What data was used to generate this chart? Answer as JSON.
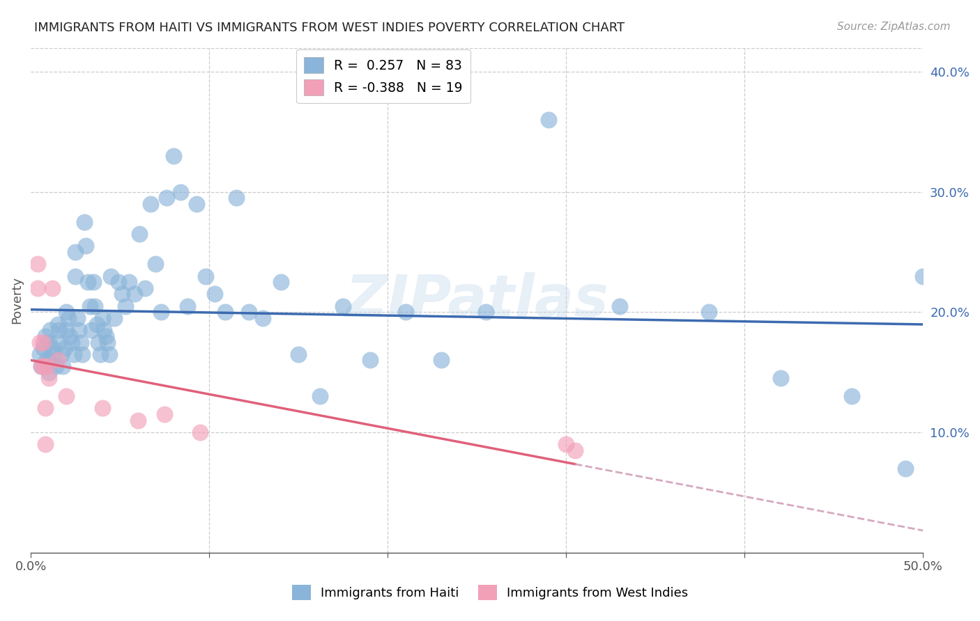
{
  "title": "IMMIGRANTS FROM HAITI VS IMMIGRANTS FROM WEST INDIES POVERTY CORRELATION CHART",
  "source": "Source: ZipAtlas.com",
  "ylabel": "Poverty",
  "xlim": [
    0.0,
    0.5
  ],
  "ylim": [
    0.0,
    0.42
  ],
  "x_ticks": [
    0.0,
    0.1,
    0.2,
    0.3,
    0.4,
    0.5
  ],
  "x_tick_labels": [
    "0.0%",
    "",
    "",
    "",
    "",
    "50.0%"
  ],
  "y_tick_labels_right": [
    "10.0%",
    "20.0%",
    "30.0%",
    "40.0%"
  ],
  "y_ticks_right": [
    0.1,
    0.2,
    0.3,
    0.4
  ],
  "haiti_color": "#8ab4d9",
  "west_color": "#f2a0b8",
  "haiti_R": 0.257,
  "haiti_N": 83,
  "west_R": -0.388,
  "west_N": 19,
  "haiti_line_color": "#3c6ab0",
  "west_line_color": "#e0607a",
  "west_line_dashed_color": "#d0a0b8",
  "watermark": "ZIPatlas",
  "haiti_x": [
    0.005,
    0.006,
    0.007,
    0.008,
    0.009,
    0.01,
    0.01,
    0.01,
    0.011,
    0.012,
    0.013,
    0.014,
    0.015,
    0.015,
    0.016,
    0.017,
    0.018,
    0.019,
    0.02,
    0.02,
    0.021,
    0.022,
    0.023,
    0.024,
    0.025,
    0.025,
    0.026,
    0.027,
    0.028,
    0.029,
    0.03,
    0.031,
    0.032,
    0.033,
    0.034,
    0.035,
    0.036,
    0.037,
    0.038,
    0.039,
    0.04,
    0.041,
    0.042,
    0.043,
    0.044,
    0.045,
    0.047,
    0.049,
    0.051,
    0.053,
    0.055,
    0.058,
    0.061,
    0.064,
    0.067,
    0.07,
    0.073,
    0.076,
    0.08,
    0.084,
    0.088,
    0.093,
    0.098,
    0.103,
    0.109,
    0.115,
    0.122,
    0.13,
    0.14,
    0.15,
    0.162,
    0.175,
    0.19,
    0.21,
    0.23,
    0.255,
    0.29,
    0.33,
    0.38,
    0.42,
    0.46,
    0.49,
    0.5
  ],
  "haiti_y": [
    0.165,
    0.155,
    0.17,
    0.18,
    0.16,
    0.175,
    0.16,
    0.15,
    0.185,
    0.17,
    0.165,
    0.155,
    0.19,
    0.175,
    0.185,
    0.165,
    0.155,
    0.17,
    0.2,
    0.185,
    0.195,
    0.18,
    0.175,
    0.165,
    0.25,
    0.23,
    0.195,
    0.185,
    0.175,
    0.165,
    0.275,
    0.255,
    0.225,
    0.205,
    0.185,
    0.225,
    0.205,
    0.19,
    0.175,
    0.165,
    0.195,
    0.185,
    0.18,
    0.175,
    0.165,
    0.23,
    0.195,
    0.225,
    0.215,
    0.205,
    0.225,
    0.215,
    0.265,
    0.22,
    0.29,
    0.24,
    0.2,
    0.295,
    0.33,
    0.3,
    0.205,
    0.29,
    0.23,
    0.215,
    0.2,
    0.295,
    0.2,
    0.195,
    0.225,
    0.165,
    0.13,
    0.205,
    0.16,
    0.2,
    0.16,
    0.2,
    0.36,
    0.205,
    0.2,
    0.145,
    0.13,
    0.07,
    0.23
  ],
  "west_x": [
    0.004,
    0.004,
    0.005,
    0.006,
    0.007,
    0.007,
    0.008,
    0.008,
    0.009,
    0.01,
    0.012,
    0.015,
    0.02,
    0.04,
    0.06,
    0.075,
    0.095,
    0.3,
    0.305
  ],
  "west_y": [
    0.24,
    0.22,
    0.175,
    0.155,
    0.175,
    0.155,
    0.12,
    0.09,
    0.155,
    0.145,
    0.22,
    0.16,
    0.13,
    0.12,
    0.11,
    0.115,
    0.1,
    0.09,
    0.085
  ]
}
